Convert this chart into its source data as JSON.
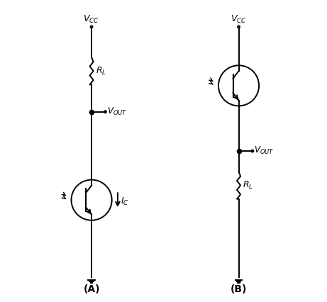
{
  "background_color": "#ffffff",
  "line_color": "#000000",
  "line_width": 1.4,
  "fig_width": 4.61,
  "fig_height": 4.26,
  "label_A": "(A)",
  "label_B": "(B)"
}
